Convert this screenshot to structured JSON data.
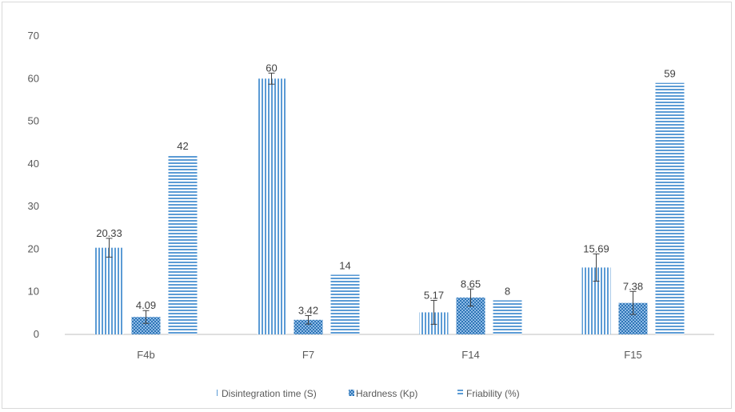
{
  "chart_data": {
    "type": "bar",
    "categories": [
      "F4b",
      "F7",
      "F14",
      "F15"
    ],
    "series": [
      {
        "name": "Disintegration time (S)",
        "values": [
          20.33,
          60,
          5.17,
          15.69
        ],
        "labels": [
          "20.33",
          "60",
          "5.17",
          "15.69"
        ],
        "errors": [
          2.2,
          1.3,
          2.8,
          3.2
        ],
        "pattern": "vertical",
        "color": "#5b9bd5"
      },
      {
        "name": "Hardness (Kp)",
        "values": [
          4.09,
          3.42,
          8.65,
          7.38
        ],
        "labels": [
          "4.09",
          "3.42",
          "8.65",
          "7.38"
        ],
        "errors": [
          1.5,
          1.0,
          2.0,
          2.7
        ],
        "pattern": "checker",
        "color": "#5b9bd5"
      },
      {
        "name": "Friability (%)",
        "values": [
          42,
          14,
          8,
          59
        ],
        "labels": [
          "42",
          "14",
          "8",
          "59"
        ],
        "errors": [
          null,
          null,
          null,
          null
        ],
        "pattern": "horizontal",
        "color": "#5b9bd5"
      }
    ],
    "y_ticks": [
      "0",
      "10",
      "20",
      "30",
      "40",
      "50",
      "60",
      "70"
    ],
    "ylim": [
      0,
      70
    ],
    "grid": false,
    "legend_position": "bottom",
    "xlabel": "",
    "ylabel": "",
    "title": ""
  }
}
